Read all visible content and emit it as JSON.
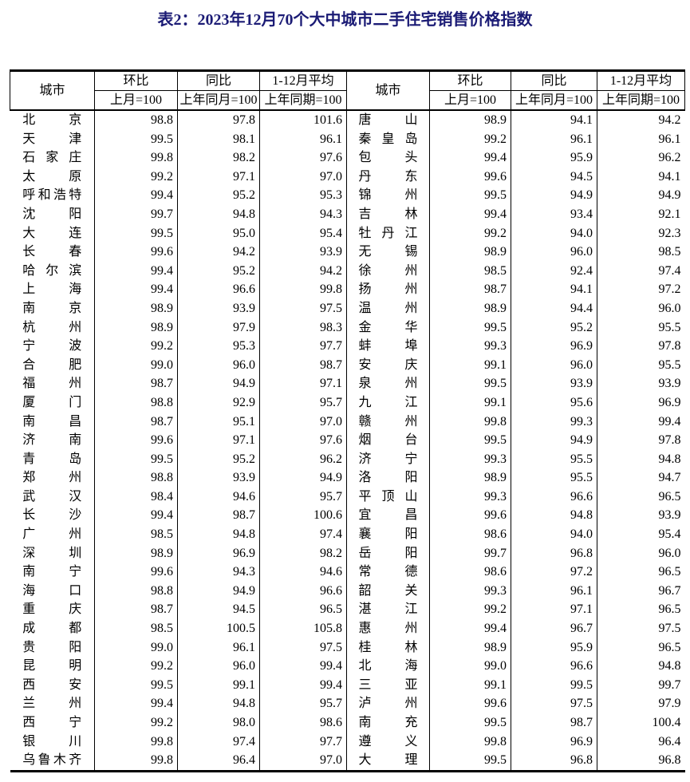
{
  "title": "表2：2023年12月70个大中城市二手住宅销售价格指数",
  "colors": {
    "title_text": "#1b1b75",
    "table_border": "#000000",
    "body_text": "#000000"
  },
  "table": {
    "header": {
      "city": "城市",
      "cols": [
        {
          "top": "环比",
          "bottom": "上月=100"
        },
        {
          "top": "同比",
          "bottom": "上年同月=100"
        },
        {
          "top": "1-12月平均",
          "bottom": "上年同期=100"
        }
      ]
    },
    "left_rows": [
      [
        "北京",
        "98.8",
        "97.8",
        "101.6"
      ],
      [
        "天津",
        "99.5",
        "98.1",
        "96.1"
      ],
      [
        "石家庄",
        "99.8",
        "98.2",
        "97.6"
      ],
      [
        "太原",
        "99.2",
        "97.1",
        "97.0"
      ],
      [
        "呼和浩特",
        "99.4",
        "95.2",
        "95.3"
      ],
      [
        "沈阳",
        "99.7",
        "94.8",
        "94.3"
      ],
      [
        "大连",
        "99.5",
        "95.0",
        "95.4"
      ],
      [
        "长春",
        "99.6",
        "94.2",
        "93.9"
      ],
      [
        "哈尔滨",
        "99.4",
        "95.2",
        "94.2"
      ],
      [
        "上海",
        "99.4",
        "96.6",
        "99.8"
      ],
      [
        "南京",
        "98.9",
        "93.9",
        "97.5"
      ],
      [
        "杭州",
        "98.9",
        "97.9",
        "98.3"
      ],
      [
        "宁波",
        "99.2",
        "95.3",
        "97.7"
      ],
      [
        "合肥",
        "99.0",
        "96.0",
        "98.7"
      ],
      [
        "福州",
        "98.7",
        "94.9",
        "97.1"
      ],
      [
        "厦门",
        "98.8",
        "92.9",
        "95.7"
      ],
      [
        "南昌",
        "98.7",
        "95.1",
        "97.0"
      ],
      [
        "济南",
        "99.6",
        "97.1",
        "97.6"
      ],
      [
        "青岛",
        "99.5",
        "95.2",
        "96.2"
      ],
      [
        "郑州",
        "98.8",
        "93.9",
        "94.9"
      ],
      [
        "武汉",
        "98.4",
        "94.6",
        "95.7"
      ],
      [
        "长沙",
        "99.4",
        "98.7",
        "100.6"
      ],
      [
        "广州",
        "98.5",
        "94.8",
        "97.4"
      ],
      [
        "深圳",
        "98.9",
        "96.9",
        "98.2"
      ],
      [
        "南宁",
        "99.6",
        "94.3",
        "94.6"
      ],
      [
        "海口",
        "98.8",
        "94.9",
        "96.6"
      ],
      [
        "重庆",
        "98.7",
        "94.5",
        "96.5"
      ],
      [
        "成都",
        "98.5",
        "100.5",
        "105.8"
      ],
      [
        "贵阳",
        "99.0",
        "96.1",
        "97.5"
      ],
      [
        "昆明",
        "99.2",
        "96.0",
        "99.4"
      ],
      [
        "西安",
        "99.5",
        "99.1",
        "99.4"
      ],
      [
        "兰州",
        "99.4",
        "94.8",
        "95.7"
      ],
      [
        "西宁",
        "99.2",
        "98.0",
        "98.6"
      ],
      [
        "银川",
        "99.8",
        "97.4",
        "97.7"
      ],
      [
        "乌鲁木齐",
        "99.8",
        "96.4",
        "97.0"
      ]
    ],
    "right_rows": [
      [
        "唐山",
        "98.9",
        "94.1",
        "94.2"
      ],
      [
        "秦皇岛",
        "99.2",
        "96.1",
        "96.1"
      ],
      [
        "包头",
        "99.4",
        "95.9",
        "96.2"
      ],
      [
        "丹东",
        "99.6",
        "94.5",
        "94.1"
      ],
      [
        "锦州",
        "99.5",
        "94.9",
        "94.9"
      ],
      [
        "吉林",
        "99.4",
        "93.4",
        "92.1"
      ],
      [
        "牡丹江",
        "99.2",
        "94.0",
        "92.3"
      ],
      [
        "无锡",
        "98.9",
        "96.0",
        "98.5"
      ],
      [
        "徐州",
        "98.5",
        "92.4",
        "97.4"
      ],
      [
        "扬州",
        "98.7",
        "94.1",
        "97.2"
      ],
      [
        "温州",
        "98.9",
        "94.4",
        "96.0"
      ],
      [
        "金华",
        "99.5",
        "95.2",
        "95.5"
      ],
      [
        "蚌埠",
        "99.3",
        "96.9",
        "97.8"
      ],
      [
        "安庆",
        "99.1",
        "96.0",
        "95.5"
      ],
      [
        "泉州",
        "99.5",
        "93.9",
        "93.9"
      ],
      [
        "九江",
        "99.1",
        "95.6",
        "96.9"
      ],
      [
        "赣州",
        "99.8",
        "99.3",
        "99.4"
      ],
      [
        "烟台",
        "99.5",
        "94.9",
        "97.8"
      ],
      [
        "济宁",
        "99.3",
        "95.5",
        "94.8"
      ],
      [
        "洛阳",
        "98.9",
        "95.5",
        "94.7"
      ],
      [
        "平顶山",
        "99.3",
        "96.6",
        "96.5"
      ],
      [
        "宜昌",
        "99.6",
        "94.8",
        "93.9"
      ],
      [
        "襄阳",
        "98.6",
        "94.0",
        "95.4"
      ],
      [
        "岳阳",
        "99.7",
        "96.8",
        "96.0"
      ],
      [
        "常德",
        "98.6",
        "97.2",
        "96.5"
      ],
      [
        "韶关",
        "99.3",
        "96.1",
        "96.7"
      ],
      [
        "湛江",
        "99.2",
        "97.1",
        "96.5"
      ],
      [
        "惠州",
        "99.4",
        "96.7",
        "97.5"
      ],
      [
        "桂林",
        "98.9",
        "95.9",
        "96.5"
      ],
      [
        "北海",
        "99.0",
        "96.6",
        "94.8"
      ],
      [
        "三亚",
        "99.1",
        "99.5",
        "99.7"
      ],
      [
        "泸州",
        "99.6",
        "97.5",
        "97.9"
      ],
      [
        "南充",
        "99.5",
        "98.7",
        "100.4"
      ],
      [
        "遵义",
        "99.8",
        "96.9",
        "96.4"
      ],
      [
        "大理",
        "99.5",
        "96.8",
        "96.8"
      ]
    ]
  }
}
